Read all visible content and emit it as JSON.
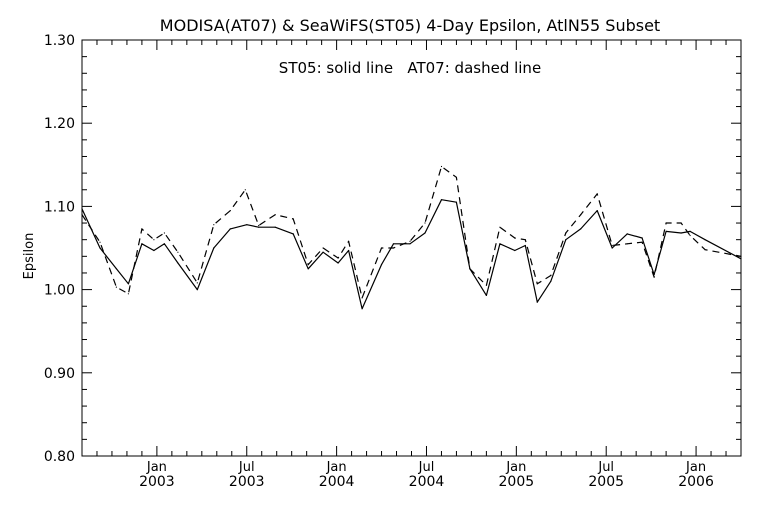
{
  "chart_data": {
    "type": "line",
    "title": "MODISA(AT07) & SeaWiFS(ST05) 4-Day Epsilon, AtlN55 Subset",
    "annotation": "ST05: solid line   AT07: dashed line",
    "ylabel": "Epsilon",
    "xlabel": "",
    "x_units": "months since Aug 2002",
    "xlim": [
      0,
      44
    ],
    "ylim": [
      0.8,
      1.3
    ],
    "yticks": [
      {
        "value": 0.8,
        "label": "0.80"
      },
      {
        "value": 0.9,
        "label": "0.90"
      },
      {
        "value": 1.0,
        "label": "1.00"
      },
      {
        "value": 1.1,
        "label": "1.10"
      },
      {
        "value": 1.2,
        "label": "1.20"
      },
      {
        "value": 1.3,
        "label": "1.30"
      }
    ],
    "xticks": [
      {
        "month": "Jan",
        "year": "2003"
      },
      {
        "month": "Jul",
        "year": "2003"
      },
      {
        "month": "Jan",
        "year": "2004"
      },
      {
        "month": "Jul",
        "year": "2004"
      },
      {
        "month": "Jan",
        "year": "2005"
      },
      {
        "month": "Jul",
        "year": "2005"
      },
      {
        "month": "Jan",
        "year": "2006"
      }
    ],
    "grid": false,
    "series": [
      {
        "name": "ST05",
        "style": "solid",
        "color": "#000000",
        "points": [
          [
            0.0,
            1.097
          ],
          [
            1.2,
            1.05
          ],
          [
            2.3,
            1.025
          ],
          [
            3.1,
            1.007
          ],
          [
            4.0,
            1.055
          ],
          [
            4.8,
            1.047
          ],
          [
            5.5,
            1.055
          ],
          [
            6.4,
            1.032
          ],
          [
            7.7,
            1.0
          ],
          [
            8.8,
            1.05
          ],
          [
            9.9,
            1.073
          ],
          [
            11.0,
            1.078
          ],
          [
            11.8,
            1.075
          ],
          [
            12.9,
            1.075
          ],
          [
            14.1,
            1.067
          ],
          [
            15.1,
            1.025
          ],
          [
            16.1,
            1.045
          ],
          [
            17.1,
            1.032
          ],
          [
            17.8,
            1.047
          ],
          [
            18.7,
            0.977
          ],
          [
            20.0,
            1.03
          ],
          [
            20.8,
            1.055
          ],
          [
            21.9,
            1.055
          ],
          [
            22.9,
            1.068
          ],
          [
            24.0,
            1.108
          ],
          [
            25.0,
            1.105
          ],
          [
            25.9,
            1.025
          ],
          [
            27.0,
            0.993
          ],
          [
            27.9,
            1.055
          ],
          [
            28.9,
            1.047
          ],
          [
            29.6,
            1.053
          ],
          [
            30.4,
            0.985
          ],
          [
            31.3,
            1.01
          ],
          [
            32.3,
            1.06
          ],
          [
            33.3,
            1.073
          ],
          [
            34.4,
            1.095
          ],
          [
            35.4,
            1.05
          ],
          [
            36.4,
            1.067
          ],
          [
            37.4,
            1.062
          ],
          [
            38.2,
            1.018
          ],
          [
            39.0,
            1.07
          ],
          [
            40.0,
            1.068
          ],
          [
            40.6,
            1.07
          ],
          [
            41.6,
            1.06
          ],
          [
            44.0,
            1.037
          ]
        ]
      },
      {
        "name": "AT07",
        "style": "dashed",
        "color": "#000000",
        "points": [
          [
            0.0,
            1.09
          ],
          [
            1.2,
            1.057
          ],
          [
            2.3,
            1.003
          ],
          [
            3.1,
            0.995
          ],
          [
            4.0,
            1.073
          ],
          [
            4.8,
            1.06
          ],
          [
            5.5,
            1.068
          ],
          [
            6.4,
            1.045
          ],
          [
            7.7,
            1.008
          ],
          [
            8.8,
            1.078
          ],
          [
            9.9,
            1.095
          ],
          [
            10.9,
            1.12
          ],
          [
            11.8,
            1.077
          ],
          [
            12.9,
            1.09
          ],
          [
            14.1,
            1.085
          ],
          [
            15.1,
            1.03
          ],
          [
            16.1,
            1.05
          ],
          [
            17.1,
            1.038
          ],
          [
            17.8,
            1.058
          ],
          [
            18.7,
            0.99
          ],
          [
            20.0,
            1.05
          ],
          [
            20.8,
            1.05
          ],
          [
            21.9,
            1.058
          ],
          [
            22.9,
            1.08
          ],
          [
            24.0,
            1.148
          ],
          [
            25.0,
            1.135
          ],
          [
            25.9,
            1.025
          ],
          [
            27.0,
            1.005
          ],
          [
            27.9,
            1.075
          ],
          [
            28.9,
            1.062
          ],
          [
            29.6,
            1.06
          ],
          [
            30.4,
            1.007
          ],
          [
            31.3,
            1.017
          ],
          [
            32.3,
            1.068
          ],
          [
            33.3,
            1.09
          ],
          [
            34.4,
            1.115
          ],
          [
            35.4,
            1.053
          ],
          [
            36.4,
            1.055
          ],
          [
            37.4,
            1.057
          ],
          [
            38.2,
            1.015
          ],
          [
            39.0,
            1.08
          ],
          [
            40.0,
            1.08
          ],
          [
            40.6,
            1.065
          ],
          [
            41.6,
            1.048
          ],
          [
            44.0,
            1.04
          ]
        ]
      }
    ]
  }
}
